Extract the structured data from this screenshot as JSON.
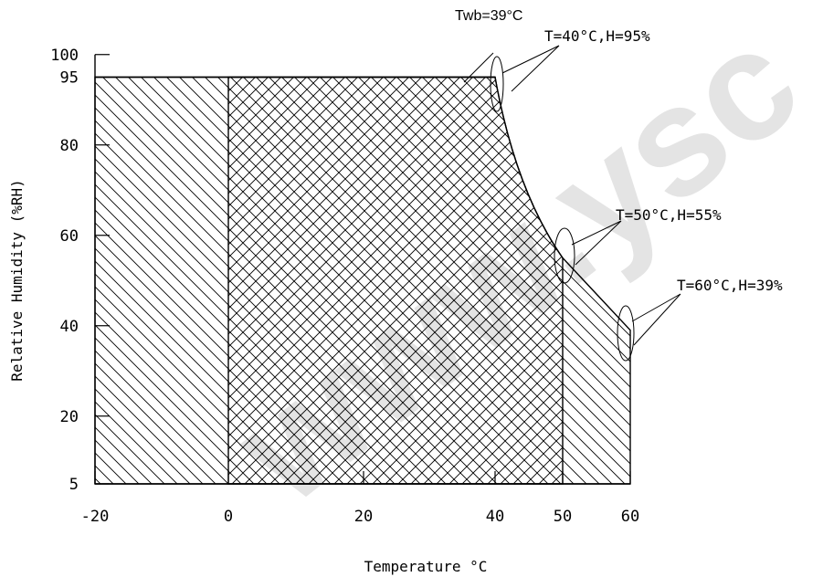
{
  "chart_data": {
    "type": "area",
    "xlabel": "Temperature °C",
    "ylabel": "Relative Humidity (%RH)",
    "x_ticks": [
      -20,
      0,
      20,
      40,
      50,
      60
    ],
    "y_ticks": [
      5,
      20,
      40,
      60,
      80,
      95,
      100
    ],
    "xlim": [
      -20,
      60
    ],
    "ylim": [
      5,
      100
    ],
    "outer_region": [
      [
        -20,
        5
      ],
      [
        -20,
        95
      ],
      [
        40,
        95
      ],
      [
        50,
        55
      ],
      [
        60,
        39
      ],
      [
        60,
        5
      ]
    ],
    "inner_region": [
      [
        0,
        5
      ],
      [
        0,
        95
      ],
      [
        40,
        95
      ],
      [
        50,
        55
      ],
      [
        50,
        5
      ]
    ],
    "annotations": [
      {
        "text": "Twb=39°C"
      },
      {
        "text": "T=40°C,H=95%",
        "x": 40,
        "y": 95
      },
      {
        "text": "T=50°C,H=55%",
        "x": 50,
        "y": 55
      },
      {
        "text": "T=60°C,H=39%",
        "x": 60,
        "y": 39
      }
    ]
  },
  "watermark": "www.ysc"
}
